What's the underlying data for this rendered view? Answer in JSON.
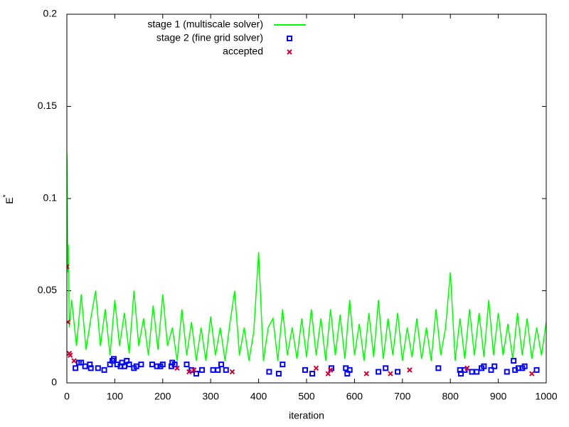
{
  "chart_data": {
    "type": "line",
    "xlabel": "iteration",
    "ylabel": "E",
    "ylabel_superscript": "*",
    "xlim": [
      0,
      1000
    ],
    "xticks": [
      0,
      100,
      200,
      300,
      400,
      500,
      600,
      700,
      800,
      900,
      1000
    ],
    "ylim": [
      0,
      0.2
    ],
    "yticks": [
      0,
      0.05,
      0.1,
      0.15,
      0.2
    ],
    "legend": "top-left",
    "series": [
      {
        "name": "stage 1 (multiscale solver)",
        "color": "#00ff00",
        "type": "line",
        "x": [
          0,
          1,
          2,
          3,
          5,
          10,
          20,
          30,
          40,
          50,
          60,
          70,
          80,
          90,
          100,
          110,
          120,
          130,
          140,
          150,
          160,
          170,
          180,
          190,
          200,
          210,
          220,
          230,
          240,
          250,
          260,
          270,
          280,
          290,
          300,
          310,
          320,
          330,
          340,
          350,
          360,
          370,
          380,
          390,
          400,
          410,
          420,
          430,
          440,
          450,
          460,
          470,
          480,
          490,
          500,
          510,
          520,
          530,
          540,
          550,
          560,
          570,
          580,
          590,
          600,
          610,
          620,
          630,
          640,
          650,
          660,
          670,
          680,
          690,
          700,
          710,
          720,
          730,
          740,
          750,
          760,
          770,
          780,
          790,
          800,
          810,
          820,
          830,
          840,
          850,
          860,
          870,
          880,
          890,
          900,
          910,
          920,
          930,
          940,
          950,
          960,
          970,
          980,
          990,
          1000
        ],
        "values": [
          0.125,
          0.105,
          0.06,
          0.075,
          0.03,
          0.045,
          0.02,
          0.048,
          0.018,
          0.035,
          0.05,
          0.02,
          0.04,
          0.015,
          0.045,
          0.02,
          0.038,
          0.016,
          0.05,
          0.02,
          0.035,
          0.015,
          0.042,
          0.018,
          0.048,
          0.02,
          0.03,
          0.012,
          0.04,
          0.015,
          0.033,
          0.012,
          0.03,
          0.012,
          0.036,
          0.015,
          0.03,
          0.012,
          0.032,
          0.05,
          0.015,
          0.03,
          0.012,
          0.028,
          0.071,
          0.012,
          0.03,
          0.035,
          0.012,
          0.04,
          0.015,
          0.03,
          0.013,
          0.035,
          0.014,
          0.04,
          0.015,
          0.035,
          0.012,
          0.04,
          0.015,
          0.037,
          0.013,
          0.045,
          0.015,
          0.032,
          0.012,
          0.038,
          0.014,
          0.045,
          0.013,
          0.035,
          0.015,
          0.038,
          0.012,
          0.03,
          0.014,
          0.035,
          0.013,
          0.03,
          0.012,
          0.04,
          0.015,
          0.03,
          0.06,
          0.012,
          0.035,
          0.013,
          0.04,
          0.015,
          0.038,
          0.014,
          0.045,
          0.015,
          0.038,
          0.015,
          0.032,
          0.013,
          0.038,
          0.015,
          0.035,
          0.013,
          0.03,
          0.015,
          0.033
        ]
      },
      {
        "name": "stage 2 (fine grid solver)",
        "color": "#0000ff",
        "type": "scatter",
        "marker": "square",
        "x": [
          18,
          25,
          30,
          38,
          48,
          50,
          65,
          78,
          90,
          95,
          98,
          105,
          112,
          115,
          120,
          125,
          130,
          140,
          145,
          155,
          178,
          188,
          195,
          200,
          218,
          220,
          225,
          250,
          260,
          270,
          282,
          305,
          315,
          322,
          332,
          422,
          442,
          450,
          497,
          512,
          552,
          582,
          585,
          590,
          650,
          665,
          690,
          775,
          820,
          822,
          830,
          845,
          855,
          865,
          870,
          885,
          892,
          918,
          932,
          935,
          942,
          950,
          955,
          980
        ],
        "values": [
          0.008,
          0.011,
          0.011,
          0.009,
          0.01,
          0.008,
          0.008,
          0.007,
          0.01,
          0.012,
          0.013,
          0.01,
          0.009,
          0.011,
          0.009,
          0.012,
          0.01,
          0.008,
          0.009,
          0.01,
          0.01,
          0.009,
          0.009,
          0.01,
          0.009,
          0.011,
          0.01,
          0.01,
          0.007,
          0.005,
          0.007,
          0.007,
          0.007,
          0.01,
          0.007,
          0.006,
          0.005,
          0.01,
          0.007,
          0.005,
          0.008,
          0.008,
          0.005,
          0.007,
          0.006,
          0.008,
          0.006,
          0.008,
          0.007,
          0.005,
          0.007,
          0.006,
          0.006,
          0.008,
          0.009,
          0.007,
          0.009,
          0.006,
          0.012,
          0.007,
          0.008,
          0.008,
          0.009,
          0.007
        ]
      },
      {
        "name": "accepted",
        "color": "#cc0033",
        "type": "scatter",
        "marker": "x",
        "x": [
          0,
          2,
          5,
          7,
          15,
          230,
          255,
          265,
          345,
          520,
          545,
          550,
          625,
          675,
          715,
          835,
          970
        ],
        "values": [
          0.063,
          0.033,
          0.016,
          0.015,
          0.012,
          0.008,
          0.006,
          0.007,
          0.006,
          0.008,
          0.005,
          0.007,
          0.005,
          0.005,
          0.007,
          0.008,
          0.005
        ]
      }
    ]
  }
}
